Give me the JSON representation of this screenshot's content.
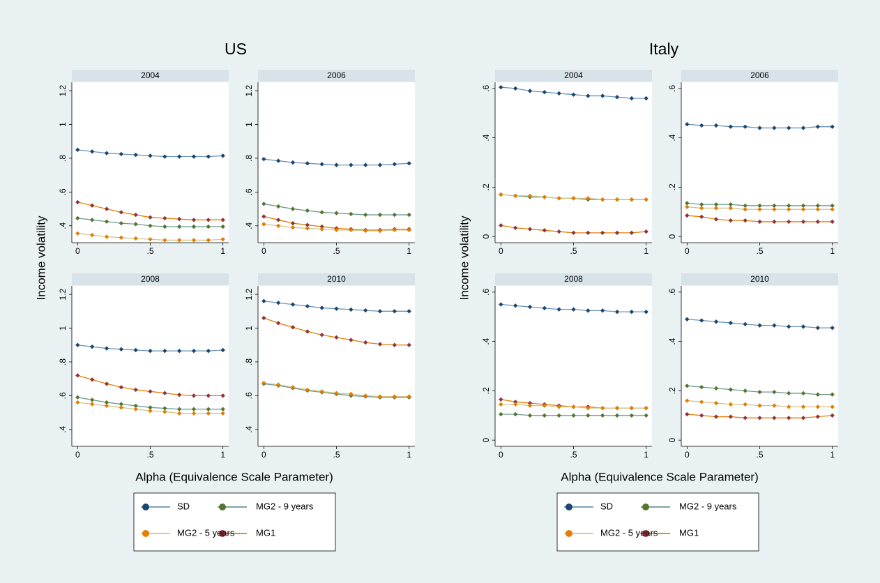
{
  "chart_data": [
    {
      "type": "line",
      "title": "US",
      "y_label": "Income volatility",
      "x_label": "Alpha (Equivalence Scale Parameter)",
      "x": [
        0,
        0.1,
        0.2,
        0.3,
        0.4,
        0.5,
        0.6,
        0.7,
        0.8,
        0.9,
        1
      ],
      "xlim": [
        -0.04,
        1.04
      ],
      "xticks": [
        0,
        {
          "value": 0.5,
          "label": ".5"
        },
        1
      ],
      "ylim": [
        0.3,
        1.25
      ],
      "yticks": [
        {
          "value": 0.4,
          "label": ".4"
        },
        {
          "value": 0.6,
          "label": ".6"
        },
        {
          "value": 0.8,
          "label": ".8"
        },
        1,
        1.2
      ],
      "panels": [
        {
          "title": "2004",
          "series": [
            {
              "name": "SD",
              "color": "#1a476f",
              "line_color": "#6f94b3",
              "values": [
                0.85,
                0.84,
                0.83,
                0.825,
                0.82,
                0.815,
                0.81,
                0.81,
                0.81,
                0.81,
                0.815
              ]
            },
            {
              "name": "MG1",
              "color": "#90353b",
              "line_color": "#e37e00",
              "values": [
                0.54,
                0.52,
                0.5,
                0.48,
                0.465,
                0.45,
                0.445,
                0.44,
                0.435,
                0.435,
                0.435
              ]
            },
            {
              "name": "MG2 - 9 years",
              "color": "#55752f",
              "line_color": "#6a9a8c",
              "values": [
                0.445,
                0.435,
                0.425,
                0.415,
                0.41,
                0.4,
                0.395,
                0.395,
                0.395,
                0.395,
                0.395
              ]
            },
            {
              "name": "MG2 - 5 years",
              "color": "#e37e00",
              "line_color": "#cfc48a",
              "values": [
                0.355,
                0.345,
                0.335,
                0.33,
                0.325,
                0.32,
                0.315,
                0.315,
                0.315,
                0.315,
                0.32
              ]
            }
          ]
        },
        {
          "title": "2006",
          "series": [
            {
              "name": "SD",
              "color": "#1a476f",
              "line_color": "#6f94b3",
              "values": [
                0.795,
                0.785,
                0.775,
                0.77,
                0.765,
                0.76,
                0.76,
                0.76,
                0.76,
                0.765,
                0.77
              ]
            },
            {
              "name": "MG1",
              "color": "#90353b",
              "line_color": "#e37e00",
              "values": [
                0.455,
                0.435,
                0.415,
                0.405,
                0.395,
                0.385,
                0.38,
                0.375,
                0.375,
                0.38,
                0.38
              ]
            },
            {
              "name": "MG2 - 9 years",
              "color": "#55752f",
              "line_color": "#6a9a8c",
              "values": [
                0.53,
                0.515,
                0.5,
                0.49,
                0.48,
                0.475,
                0.47,
                0.465,
                0.465,
                0.465,
                0.465
              ]
            },
            {
              "name": "MG2 - 5 years",
              "color": "#e37e00",
              "line_color": "#cfc48a",
              "values": [
                0.41,
                0.4,
                0.39,
                0.385,
                0.38,
                0.375,
                0.375,
                0.37,
                0.37,
                0.375,
                0.375
              ]
            }
          ]
        },
        {
          "title": "2008",
          "series": [
            {
              "name": "SD",
              "color": "#1a476f",
              "line_color": "#6f94b3",
              "values": [
                0.9,
                0.89,
                0.88,
                0.875,
                0.87,
                0.865,
                0.865,
                0.865,
                0.865,
                0.865,
                0.87
              ]
            },
            {
              "name": "MG1",
              "color": "#90353b",
              "line_color": "#e37e00",
              "values": [
                0.72,
                0.695,
                0.67,
                0.65,
                0.635,
                0.625,
                0.615,
                0.605,
                0.6,
                0.6,
                0.6
              ]
            },
            {
              "name": "MG2 - 9 years",
              "color": "#55752f",
              "line_color": "#6a9a8c",
              "values": [
                0.59,
                0.575,
                0.56,
                0.55,
                0.54,
                0.53,
                0.525,
                0.52,
                0.52,
                0.52,
                0.52
              ]
            },
            {
              "name": "MG2 - 5 years",
              "color": "#e37e00",
              "line_color": "#cfc48a",
              "values": [
                0.56,
                0.55,
                0.54,
                0.53,
                0.52,
                0.51,
                0.505,
                0.495,
                0.495,
                0.495,
                0.495
              ]
            }
          ]
        },
        {
          "title": "2010",
          "series": [
            {
              "name": "SD",
              "color": "#1a476f",
              "line_color": "#6f94b3",
              "values": [
                1.16,
                1.15,
                1.14,
                1.13,
                1.12,
                1.115,
                1.11,
                1.105,
                1.1,
                1.1,
                1.1
              ]
            },
            {
              "name": "MG1",
              "color": "#90353b",
              "line_color": "#e37e00",
              "values": [
                1.06,
                1.03,
                1.005,
                0.98,
                0.96,
                0.945,
                0.93,
                0.915,
                0.905,
                0.9,
                0.9
              ]
            },
            {
              "name": "MG2 - 9 years",
              "color": "#55752f",
              "line_color": "#6a9a8c",
              "values": [
                0.67,
                0.66,
                0.645,
                0.63,
                0.62,
                0.61,
                0.6,
                0.595,
                0.59,
                0.59,
                0.59
              ]
            },
            {
              "name": "MG2 - 5 years",
              "color": "#e37e00",
              "line_color": "#cfc48a",
              "values": [
                0.675,
                0.665,
                0.65,
                0.635,
                0.625,
                0.615,
                0.61,
                0.6,
                0.595,
                0.595,
                0.595
              ]
            }
          ]
        }
      ]
    },
    {
      "type": "line",
      "title": "Italy",
      "y_label": "Income volatility",
      "x_label": "Alpha (Equivalence Scale Parameter)",
      "x": [
        0,
        0.1,
        0.2,
        0.3,
        0.4,
        0.5,
        0.6,
        0.7,
        0.8,
        0.9,
        1
      ],
      "xlim": [
        -0.04,
        1.04
      ],
      "xticks": [
        0,
        {
          "value": 0.5,
          "label": ".5"
        },
        1
      ],
      "ylim": [
        -0.025,
        0.625
      ],
      "yticks": [
        0,
        {
          "value": 0.2,
          "label": ".2"
        },
        {
          "value": 0.4,
          "label": ".4"
        },
        {
          "value": 0.6,
          "label": ".6"
        }
      ],
      "panels": [
        {
          "title": "2004",
          "series": [
            {
              "name": "SD",
              "color": "#1a476f",
              "line_color": "#6f94b3",
              "values": [
                0.605,
                0.6,
                0.59,
                0.585,
                0.58,
                0.575,
                0.57,
                0.57,
                0.565,
                0.56,
                0.56
              ]
            },
            {
              "name": "MG1",
              "color": "#90353b",
              "line_color": "#e37e00",
              "values": [
                0.045,
                0.035,
                0.03,
                0.025,
                0.02,
                0.015,
                0.015,
                0.015,
                0.015,
                0.015,
                0.02
              ]
            },
            {
              "name": "MG2 - 9 years",
              "color": "#55752f",
              "line_color": "#6a9a8c",
              "values": [
                0.17,
                0.165,
                0.16,
                0.16,
                0.155,
                0.155,
                0.15,
                0.15,
                0.15,
                0.15,
                0.15
              ]
            },
            {
              "name": "MG2 - 5 years",
              "color": "#e37e00",
              "line_color": "#cfc48a",
              "values": [
                0.17,
                0.165,
                0.165,
                0.16,
                0.155,
                0.155,
                0.155,
                0.15,
                0.15,
                0.15,
                0.15
              ]
            }
          ]
        },
        {
          "title": "2006",
          "series": [
            {
              "name": "SD",
              "color": "#1a476f",
              "line_color": "#6f94b3",
              "values": [
                0.455,
                0.45,
                0.45,
                0.445,
                0.445,
                0.44,
                0.44,
                0.44,
                0.44,
                0.445,
                0.445
              ]
            },
            {
              "name": "MG1",
              "color": "#90353b",
              "line_color": "#e37e00",
              "values": [
                0.085,
                0.08,
                0.07,
                0.065,
                0.065,
                0.06,
                0.06,
                0.06,
                0.06,
                0.06,
                0.06
              ]
            },
            {
              "name": "MG2 - 9 years",
              "color": "#55752f",
              "line_color": "#6a9a8c",
              "values": [
                0.135,
                0.13,
                0.13,
                0.13,
                0.125,
                0.125,
                0.125,
                0.125,
                0.125,
                0.125,
                0.125
              ]
            },
            {
              "name": "MG2 - 5 years",
              "color": "#e37e00",
              "line_color": "#cfc48a",
              "values": [
                0.12,
                0.115,
                0.115,
                0.115,
                0.11,
                0.11,
                0.11,
                0.11,
                0.11,
                0.11,
                0.11
              ]
            }
          ]
        },
        {
          "title": "2008",
          "series": [
            {
              "name": "SD",
              "color": "#1a476f",
              "line_color": "#6f94b3",
              "values": [
                0.55,
                0.545,
                0.54,
                0.535,
                0.53,
                0.53,
                0.525,
                0.525,
                0.52,
                0.52,
                0.52
              ]
            },
            {
              "name": "MG1",
              "color": "#90353b",
              "line_color": "#e37e00",
              "values": [
                0.165,
                0.155,
                0.15,
                0.145,
                0.14,
                0.135,
                0.135,
                0.13,
                0.13,
                0.13,
                0.13
              ]
            },
            {
              "name": "MG2 - 9 years",
              "color": "#55752f",
              "line_color": "#6a9a8c",
              "values": [
                0.105,
                0.105,
                0.1,
                0.1,
                0.1,
                0.1,
                0.1,
                0.1,
                0.1,
                0.1,
                0.1
              ]
            },
            {
              "name": "MG2 - 5 years",
              "color": "#e37e00",
              "line_color": "#cfc48a",
              "values": [
                0.145,
                0.145,
                0.14,
                0.14,
                0.135,
                0.135,
                0.13,
                0.13,
                0.13,
                0.13,
                0.13
              ]
            }
          ]
        },
        {
          "title": "2010",
          "series": [
            {
              "name": "SD",
              "color": "#1a476f",
              "line_color": "#6f94b3",
              "values": [
                0.49,
                0.485,
                0.48,
                0.475,
                0.47,
                0.465,
                0.465,
                0.46,
                0.46,
                0.455,
                0.455
              ]
            },
            {
              "name": "MG1",
              "color": "#90353b",
              "line_color": "#e37e00",
              "values": [
                0.105,
                0.1,
                0.095,
                0.095,
                0.09,
                0.09,
                0.09,
                0.09,
                0.09,
                0.095,
                0.1
              ]
            },
            {
              "name": "MG2 - 9 years",
              "color": "#55752f",
              "line_color": "#6a9a8c",
              "values": [
                0.22,
                0.215,
                0.21,
                0.205,
                0.2,
                0.195,
                0.195,
                0.19,
                0.19,
                0.185,
                0.185
              ]
            },
            {
              "name": "MG2 - 5 years",
              "color": "#e37e00",
              "line_color": "#cfc48a",
              "values": [
                0.16,
                0.155,
                0.15,
                0.145,
                0.145,
                0.14,
                0.14,
                0.135,
                0.135,
                0.135,
                0.135
              ]
            }
          ]
        }
      ]
    }
  ]
}
